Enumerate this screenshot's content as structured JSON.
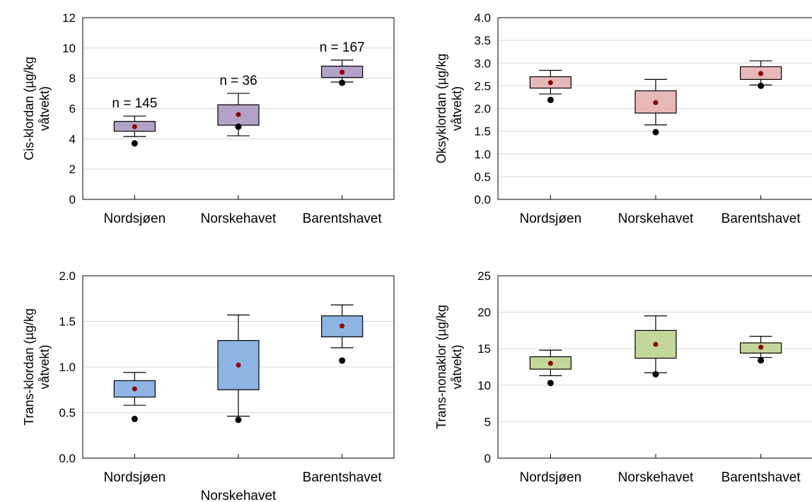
{
  "chart_data": [
    {
      "type": "box",
      "ylabel": "Cis-klordan (µg/kg våtvekt)",
      "ylim": [
        0,
        12
      ],
      "yticks": [
        "0",
        "2",
        "4",
        "6",
        "8",
        "10",
        "12"
      ],
      "grid": true,
      "box_color": "#b3a2c7",
      "categories": [
        "Nordsjøen",
        "Norskehavet",
        "Barentshavet"
      ],
      "boxes": [
        {
          "whisker_low": 4.15,
          "q1": 4.5,
          "q3": 5.15,
          "whisker_high": 5.5,
          "mean": 4.8,
          "dot": 3.7,
          "n_label": "n = 145"
        },
        {
          "whisker_low": 4.2,
          "q1": 4.9,
          "q3": 6.25,
          "whisker_high": 7.0,
          "mean": 5.6,
          "dot": 4.8,
          "n_label": "n = 36"
        },
        {
          "whisker_low": 7.75,
          "q1": 8.05,
          "q3": 8.8,
          "whisker_high": 9.2,
          "mean": 8.4,
          "dot": 7.7,
          "n_label": "n = 167"
        }
      ]
    },
    {
      "type": "box",
      "ylabel": "Oksyklordan (µg/kg våtvekt)",
      "ylim": [
        0,
        4.0
      ],
      "yticks": [
        "0.0",
        "0.5",
        "1.0",
        "1.5",
        "2.0",
        "2.5",
        "3.0",
        "3.5",
        "4.0"
      ],
      "grid": true,
      "box_color": "#e6b9b8",
      "categories": [
        "Nordsjøen",
        "Norskehavet",
        "Barentshavet"
      ],
      "boxes": [
        {
          "whisker_low": 2.32,
          "q1": 2.45,
          "q3": 2.7,
          "whisker_high": 2.84,
          "mean": 2.57,
          "dot": 2.19
        },
        {
          "whisker_low": 1.64,
          "q1": 1.9,
          "q3": 2.39,
          "whisker_high": 2.64,
          "mean": 2.13,
          "dot": 1.48
        },
        {
          "whisker_low": 2.52,
          "q1": 2.64,
          "q3": 2.92,
          "whisker_high": 3.05,
          "mean": 2.77,
          "dot": 2.5
        }
      ]
    },
    {
      "type": "box",
      "ylabel": "Trans-klordan (µg/kg våtvekt)",
      "ylim": [
        0,
        2.0
      ],
      "yticks": [
        "0.0",
        "0.5",
        "1.0",
        "1.5",
        "2.0"
      ],
      "grid": true,
      "box_color": "#8db4e2",
      "categories": [
        "Nordsjøen",
        "Norskehavet",
        "Barentshavet"
      ],
      "boxes": [
        {
          "whisker_low": 0.58,
          "q1": 0.67,
          "q3": 0.85,
          "whisker_high": 0.94,
          "mean": 0.76,
          "dot": 0.43
        },
        {
          "whisker_low": 0.46,
          "q1": 0.75,
          "q3": 1.29,
          "whisker_high": 1.57,
          "mean": 1.02,
          "dot": 0.42
        },
        {
          "whisker_low": 1.21,
          "q1": 1.33,
          "q3": 1.56,
          "whisker_high": 1.68,
          "mean": 1.45,
          "dot": 1.07
        }
      ]
    },
    {
      "type": "box",
      "ylabel": "Trans-nonaklor (µg/kg våtvekt)",
      "ylim": [
        0,
        25
      ],
      "yticks": [
        "0",
        "5",
        "10",
        "15",
        "20",
        "25"
      ],
      "grid": true,
      "box_color": "#c4d79b",
      "categories": [
        "Nordsjøen",
        "Norskehavet",
        "Barentshavet"
      ],
      "boxes": [
        {
          "whisker_low": 11.3,
          "q1": 12.2,
          "q3": 13.9,
          "whisker_high": 14.8,
          "mean": 13.0,
          "dot": 10.3
        },
        {
          "whisker_low": 11.7,
          "q1": 13.7,
          "q3": 17.5,
          "whisker_high": 19.5,
          "mean": 15.6,
          "dot": 11.5
        },
        {
          "whisker_low": 13.8,
          "q1": 14.4,
          "q3": 15.8,
          "whisker_high": 16.7,
          "mean": 15.2,
          "dot": 13.4
        }
      ]
    }
  ]
}
